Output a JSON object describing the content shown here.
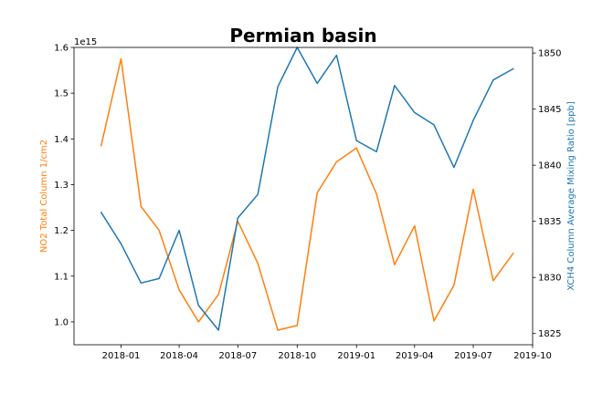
{
  "chart_data": {
    "type": "line",
    "title": "Permian basin",
    "grid": false,
    "legend": "none",
    "dual_axis": true,
    "x": [
      "2017-12-01",
      "2018-01-01",
      "2018-02-01",
      "2018-03-01",
      "2018-04-01",
      "2018-05-01",
      "2018-06-01",
      "2018-07-01",
      "2018-08-01",
      "2018-09-01",
      "2018-10-01",
      "2018-11-01",
      "2018-12-01",
      "2019-01-01",
      "2019-02-01",
      "2019-03-01",
      "2019-04-01",
      "2019-05-01",
      "2019-06-01",
      "2019-07-01",
      "2019-08-01",
      "2019-09-01"
    ],
    "xlim": [
      "2017-10-20",
      "2019-10-01"
    ],
    "xticks": [
      "2018-01-01",
      "2018-04-01",
      "2018-07-01",
      "2018-10-01",
      "2019-01-01",
      "2019-04-01",
      "2019-07-01",
      "2019-10-01"
    ],
    "xtick_labels": [
      "2018-01",
      "2018-04",
      "2018-07",
      "2018-10",
      "2019-01",
      "2019-04",
      "2019-07",
      "2019-10"
    ],
    "left_axis": {
      "label": "NO2 Total Column 1/cm2",
      "offset_label": "1e15",
      "color": "#ff7f0e",
      "lim": [
        0.95,
        1.6
      ],
      "ticks": [
        1.0,
        1.1,
        1.2,
        1.3,
        1.4,
        1.5,
        1.6
      ],
      "tick_labels": [
        "1.0",
        "1.1",
        "1.2",
        "1.3",
        "1.4",
        "1.5",
        "1.6"
      ]
    },
    "right_axis": {
      "label": "XCH4 Column Average Mixing Ratio [ppb]",
      "color": "#1f77b4",
      "lim": [
        1824,
        1850.5
      ],
      "ticks": [
        1825,
        1830,
        1835,
        1840,
        1845,
        1850
      ],
      "tick_labels": [
        "1825",
        "1830",
        "1835",
        "1840",
        "1845",
        "1850"
      ]
    },
    "series": [
      {
        "axis": "left",
        "color": "#ff7f0e",
        "values": [
          1.385,
          1.575,
          1.252,
          1.2,
          1.07,
          1.0,
          1.06,
          1.22,
          1.128,
          0.982,
          0.992,
          1.282,
          1.35,
          1.38,
          1.28,
          1.125,
          1.21,
          1.002,
          1.08,
          1.29,
          1.09,
          1.15
        ]
      },
      {
        "axis": "right",
        "color": "#1f77b4",
        "values": [
          1835.8,
          1833.0,
          1829.5,
          1829.9,
          1834.2,
          1827.5,
          1825.3,
          1835.3,
          1837.4,
          1847.0,
          1850.5,
          1847.3,
          1849.8,
          1842.2,
          1841.2,
          1847.1,
          1844.7,
          1843.6,
          1839.8,
          1844.0,
          1847.6,
          1848.6
        ]
      }
    ]
  }
}
